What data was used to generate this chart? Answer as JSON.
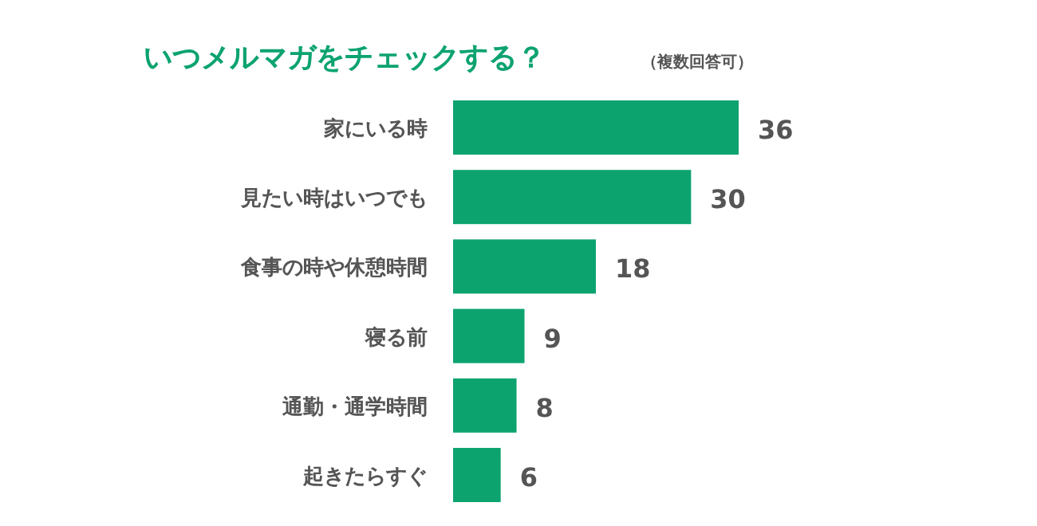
{
  "chart_data": {
    "type": "bar",
    "orientation": "horizontal",
    "title": "いつメルマガをチェックする？",
    "subtitle": "（複数回答可）",
    "categories": [
      "家にいる時",
      "見たい時はいつでも",
      "食事の時や休憩時間",
      "寝る前",
      "通勤・通学時間",
      "起きたらすぐ"
    ],
    "values": [
      36,
      30,
      18,
      9,
      8,
      6
    ],
    "color": "#0ca36f",
    "data_labels": true
  }
}
